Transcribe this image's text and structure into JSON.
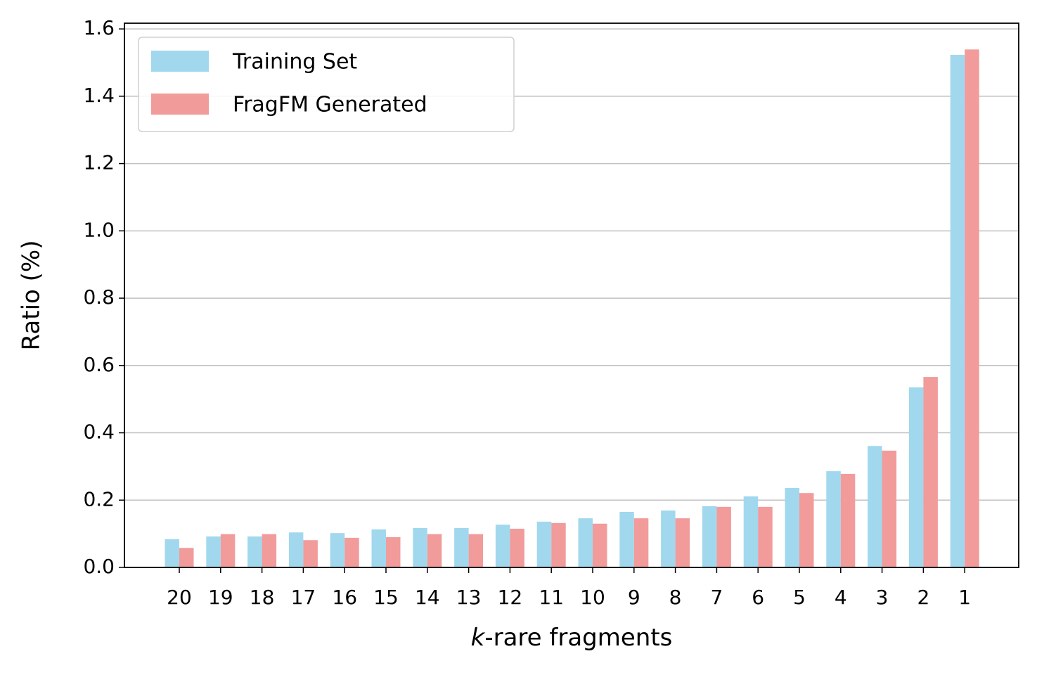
{
  "chart_data": {
    "type": "bar",
    "xlabel": "k-rare fragments",
    "ylabel": "Ratio (%)",
    "categories": [
      "20",
      "19",
      "18",
      "17",
      "16",
      "15",
      "14",
      "13",
      "12",
      "11",
      "10",
      "9",
      "8",
      "7",
      "6",
      "5",
      "4",
      "3",
      "2",
      "1"
    ],
    "series": [
      {
        "name": "Training Set",
        "color": "#a1d8ee",
        "values": [
          0.084,
          0.092,
          0.092,
          0.104,
          0.102,
          0.113,
          0.117,
          0.117,
          0.127,
          0.136,
          0.146,
          0.165,
          0.169,
          0.182,
          0.211,
          0.236,
          0.286,
          0.361,
          0.535,
          1.523
        ]
      },
      {
        "name": "FragFM Generated",
        "color": "#f29b9b",
        "values": [
          0.058,
          0.099,
          0.099,
          0.081,
          0.088,
          0.09,
          0.099,
          0.099,
          0.115,
          0.132,
          0.13,
          0.146,
          0.146,
          0.18,
          0.18,
          0.221,
          0.278,
          0.347,
          0.566,
          1.539
        ]
      }
    ],
    "ylim": [
      0,
      1.617
    ],
    "yticks": [
      {
        "value": 0,
        "label": "0.0"
      },
      0.2,
      0.4,
      0.6,
      0.8,
      {
        "value": 1,
        "label": "1.0"
      },
      1.2,
      1.4,
      1.6
    ],
    "grid": true,
    "legend": "upper-left"
  }
}
